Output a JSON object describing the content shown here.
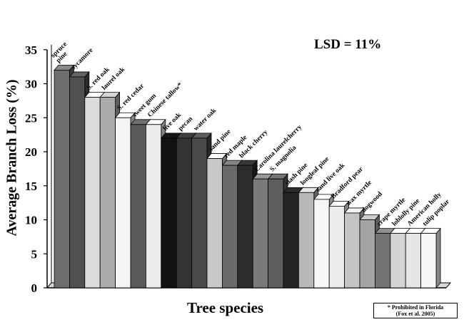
{
  "chart_data": {
    "type": "bar",
    "title": "",
    "xlabel": "Tree species",
    "ylabel": "Average Branch Loss (%)",
    "ylim": [
      0,
      35
    ],
    "yticks": [
      0,
      5,
      10,
      15,
      20,
      25,
      30,
      35
    ],
    "grid": false,
    "style": "3d",
    "categories": [
      "spruce pine",
      "sycamore",
      "S. red oak",
      "laurel oak",
      "S. red cedar",
      "sweet gum",
      "Chinese tallow*",
      "live oak",
      "pecan",
      "water oak",
      "sand pine",
      "red maple",
      "black cherry",
      "Carolina laurelcherry",
      "S. magnolia",
      "slash pine",
      "longleaf pine",
      "sand live oak",
      "Bradford pear",
      "wax myrtle",
      "dogwood",
      "crape myrtle",
      "loblolly pine",
      "American holly",
      "tulip poplar"
    ],
    "label_lines": [
      [
        "spruce",
        "pine"
      ],
      [
        "sycamore"
      ],
      [
        "S. red oak"
      ],
      [
        "laurel oak"
      ],
      [
        "S. red cedar"
      ],
      [
        "sweet gum"
      ],
      [
        "Chinese tallow*"
      ],
      [
        "live oak"
      ],
      [
        "pecan"
      ],
      [
        "water oak"
      ],
      [
        "sand pine"
      ],
      [
        "red maple"
      ],
      [
        "black cherry"
      ],
      [
        "Carolina laurelcherry"
      ],
      [
        "S. magnolia"
      ],
      [
        "slash pine"
      ],
      [
        "longleaf pine"
      ],
      [
        "sand live oak"
      ],
      [
        "Bradford pear"
      ],
      [
        "wax myrtle"
      ],
      [
        "dogwood"
      ],
      [
        "crape myrtle"
      ],
      [
        "loblolly pine"
      ],
      [
        "American holly"
      ],
      [
        "tulip poplar"
      ]
    ],
    "values": [
      32,
      31,
      28,
      28,
      25,
      24,
      24,
      22,
      22,
      22,
      19,
      18,
      18,
      16,
      16,
      14,
      14,
      13,
      12,
      11,
      10,
      8,
      8,
      8,
      8
    ],
    "bar_colors": [
      "#6e6e6e",
      "#505050",
      "#dcdcdc",
      "#ababab",
      "#f4f4f4",
      "#5a5a5a",
      "#ececec",
      "#121212",
      "#333333",
      "#4a4a4a",
      "#c8c8c8",
      "#6a6a6a",
      "#2c2c2c",
      "#7a7a7a",
      "#5e5e5e",
      "#242424",
      "#b8b8b8",
      "#f6f6f6",
      "#ececec",
      "#c4c4c4",
      "#a4a4a4",
      "#727272",
      "#d4d4d4",
      "#e6e6e6",
      "#f8f8f8"
    ],
    "annotations": [
      "LSD = 11%"
    ],
    "footnote": [
      "* Prohibited in Florida",
      "(Fox et al. 2005)"
    ]
  }
}
